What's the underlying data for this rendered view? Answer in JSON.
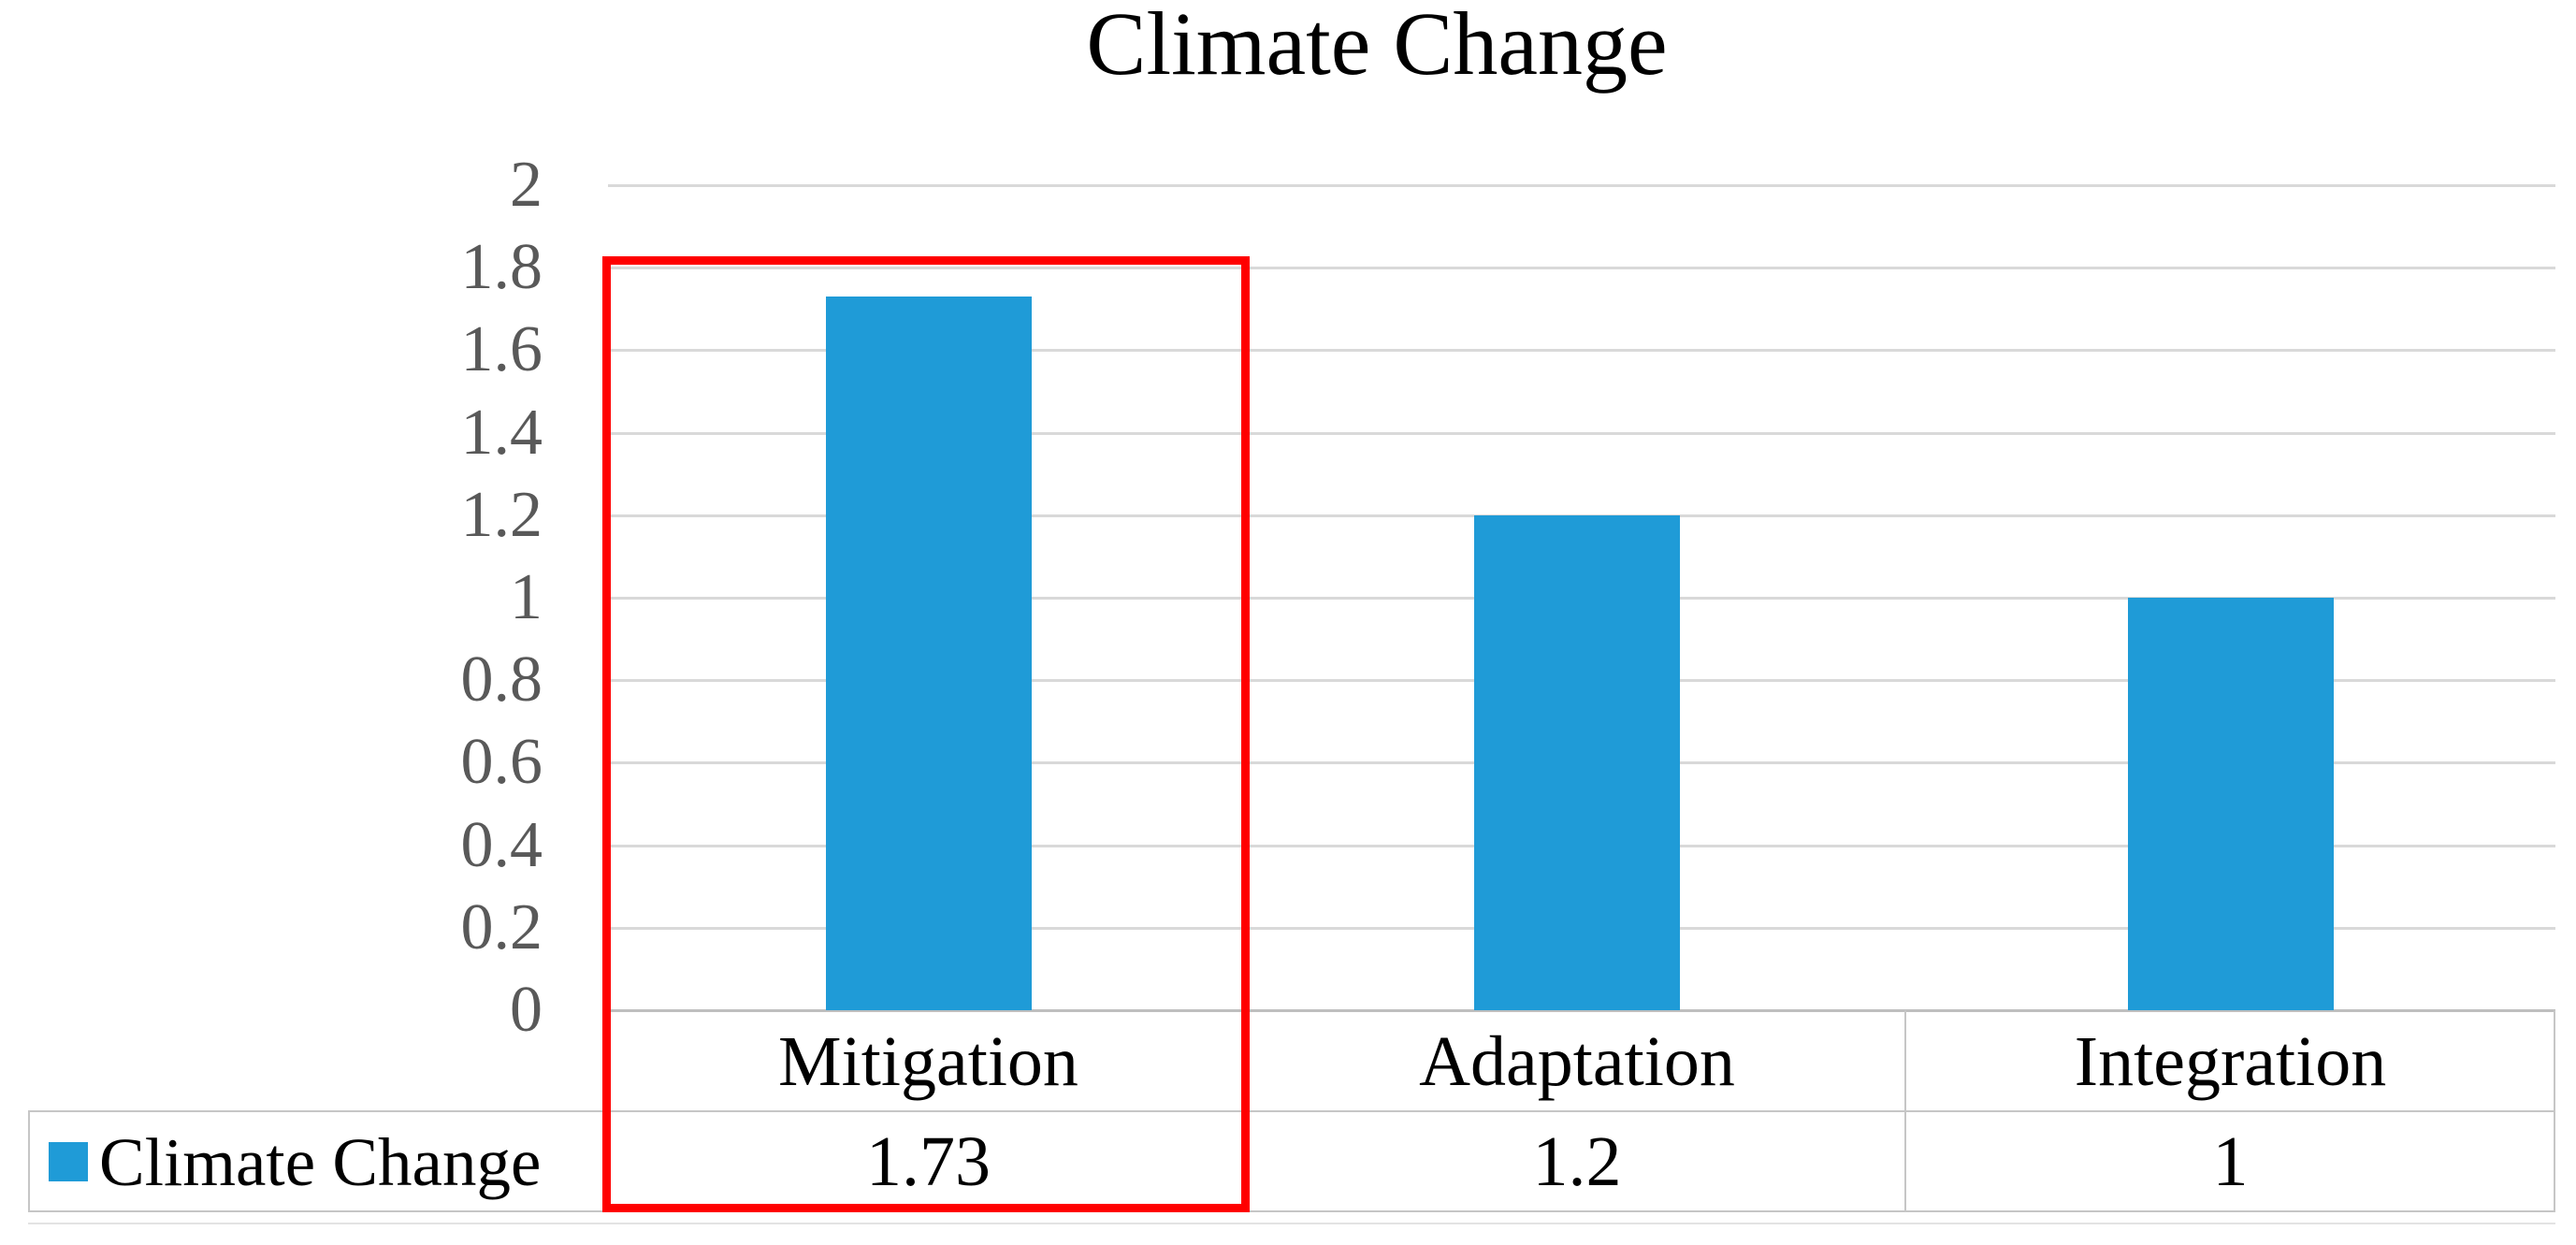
{
  "title": "Climate Change",
  "chart_data": {
    "type": "bar",
    "title": "Climate Change",
    "categories": [
      "Mitigation",
      "Adaptation",
      "Integration"
    ],
    "series": [
      {
        "name": "Climate Change",
        "values": [
          1.73,
          1.2,
          1
        ]
      }
    ],
    "value_labels": [
      "1.73",
      "1.2",
      "1"
    ],
    "ylim": [
      0,
      2
    ],
    "ytick_labels": [
      "2",
      "1.8",
      "1.6",
      "1.4",
      "1.2",
      "1",
      "0.8",
      "0.6",
      "0.4",
      "0.2",
      "0"
    ],
    "ytick_values": [
      2,
      1.8,
      1.6,
      1.4,
      1.2,
      1,
      0.8,
      0.6,
      0.4,
      0.2,
      0
    ],
    "grid": true,
    "legend_position": "bottom-data-table",
    "data_table_shown": true,
    "highlighted_category": "Mitigation",
    "colors": {
      "bar": "#1F9BD7",
      "gridline": "#D9D9D9",
      "axis_line": "#BFBFBF",
      "tick_label": "#595959",
      "table_border": "#C6C6C6",
      "table_border_faint": "#E3E3E3",
      "text": "#000000",
      "highlight": "#FF0000"
    }
  },
  "legend": {
    "label": "Climate Change",
    "swatch_color": "#1F9BD7",
    "swatch_icon": "legend-square"
  }
}
